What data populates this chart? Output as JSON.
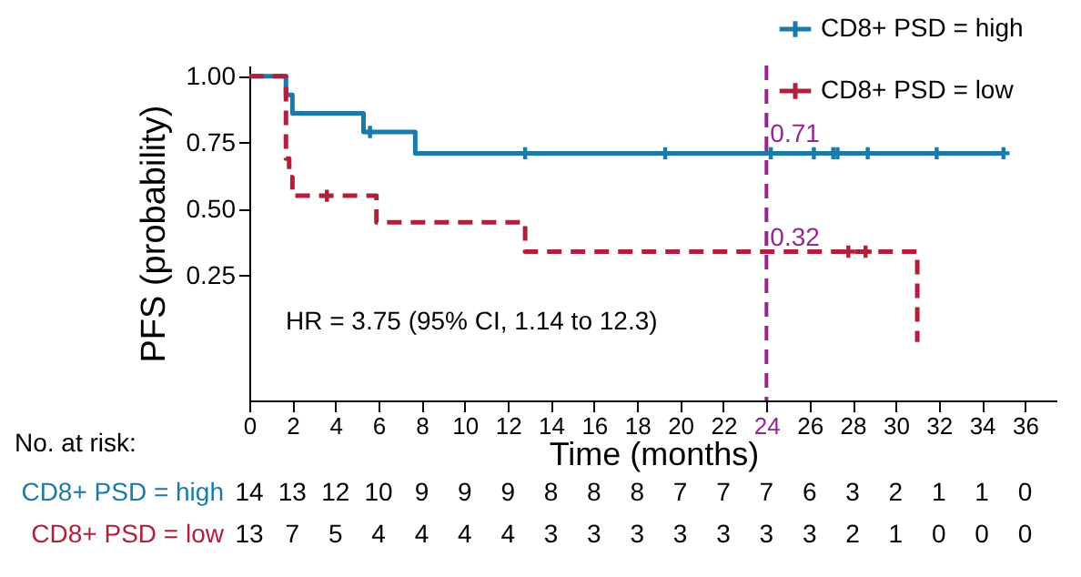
{
  "chart_data": {
    "type": "step",
    "xlabel": "Time (months)",
    "ylabel": "PFS (probability)",
    "xlim": [
      0,
      37.5
    ],
    "xticks": [
      0,
      2,
      4,
      6,
      8,
      10,
      12,
      14,
      16,
      18,
      20,
      22,
      24,
      26,
      28,
      30,
      32,
      34,
      36
    ],
    "ylim": [
      -0.22,
      1.04
    ],
    "yticks": [
      {
        "value": 0.25,
        "label": "0.25"
      },
      {
        "value": 0.5,
        "label": "0.50"
      },
      {
        "value": 0.75,
        "label": "0.75"
      },
      {
        "value": 1,
        "label": "1.00"
      }
    ],
    "series": [
      {
        "name": "CD8+ PSD = high",
        "color": "#1a7aaa",
        "line_style": "solid",
        "x": [
          0,
          1.7,
          2.0,
          5.3,
          7.7,
          35
        ],
        "values": [
          1,
          0.93,
          0.86,
          0.79,
          0.71,
          0.71
        ]
      },
      {
        "name": "CD8+ PSD = low",
        "color": "#b0203a",
        "line_style": "dashed",
        "x": [
          0,
          1.7,
          1.85,
          2.0,
          5.9,
          12.8,
          31
        ],
        "values": [
          1,
          0.69,
          0.62,
          0.55,
          0.45,
          0.34,
          0
        ]
      },
      {
        "type": "scatter",
        "marker": "cross",
        "color": "#1a7aaa",
        "x": [
          5.6,
          12.8,
          19.3,
          24.2,
          26.2,
          27.1,
          27.3,
          28.7,
          31.9,
          35.0
        ],
        "values": [
          0.79,
          0.71,
          0.71,
          0.71,
          0.71,
          0.71,
          0.71,
          0.71,
          0.71,
          0.71
        ]
      },
      {
        "type": "scatter",
        "marker": "cross",
        "color": "#b0203a",
        "x": [
          3.6,
          27.8,
          28.6
        ],
        "values": [
          0.55,
          0.34,
          0.34
        ]
      }
    ],
    "ref_lines": [
      {
        "axis": "x",
        "value": 24,
        "color": "#93278f",
        "line_style": "dashed"
      }
    ],
    "legend": "top right",
    "annotations": [
      "HR = 3.75 (95% CI, 1.14 to 12.3)",
      {
        "text": "0.71",
        "x": 24,
        "y": 0.71
      },
      {
        "text": "0.32",
        "x": 24,
        "y": 0.32
      },
      "No. at risk:",
      "CD8+ PSD = high",
      "14 13 12 10 9 9 9 8 8 8 7 7 7 6 3 2 1 1 0",
      "CD8+ PSD = low",
      "13 7 5 4 4 4 4 3 3 3 3 3 3 3 2 1 0 0 0"
    ]
  }
}
